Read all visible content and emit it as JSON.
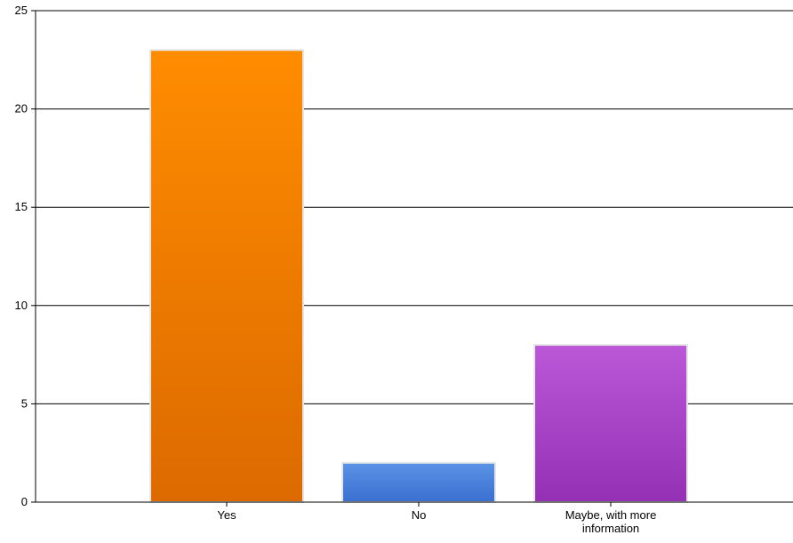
{
  "chart_data": {
    "type": "bar",
    "categories": [
      "Yes",
      "No",
      "Maybe, with more information"
    ],
    "category_label_lines": [
      [
        "Yes"
      ],
      [
        "No"
      ],
      [
        "Maybe, with more",
        "information"
      ]
    ],
    "values": [
      23,
      2,
      8
    ],
    "colors": [
      {
        "top": "#ff8c00",
        "bottom": "#dc6a00"
      },
      {
        "top": "#5b93e6",
        "bottom": "#3a6fcf"
      },
      {
        "top": "#bb58d8",
        "bottom": "#9430b4"
      }
    ],
    "ylim": [
      0,
      25
    ],
    "yticks": [
      0,
      5,
      10,
      15,
      20,
      25
    ],
    "grid": true,
    "title": "",
    "xlabel": "",
    "ylabel": ""
  }
}
